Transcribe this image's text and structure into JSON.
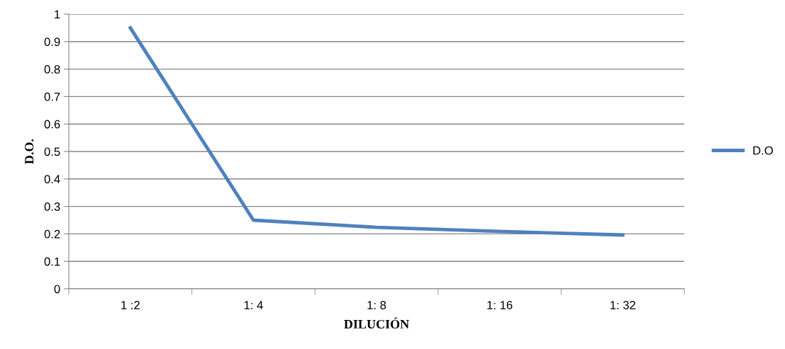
{
  "chart_data": {
    "type": "line",
    "xlabel": "DILUCIÓN",
    "ylabel": "D.O.",
    "categories": [
      "1 :2",
      "1: 4",
      "1: 8",
      "1: 16",
      "1: 32"
    ],
    "series": [
      {
        "name": "D.O",
        "color": "#4f81bd",
        "values": [
          0.95,
          0.25,
          0.224,
          0.209,
          0.196
        ]
      }
    ],
    "ylim": [
      0,
      1
    ],
    "yticks": [
      0,
      0.1,
      0.2,
      0.3,
      0.4,
      0.5,
      0.6,
      0.7,
      0.8,
      0.9,
      1
    ],
    "grid": "y",
    "legend": "right",
    "marker": "none",
    "line_style": "solid"
  }
}
